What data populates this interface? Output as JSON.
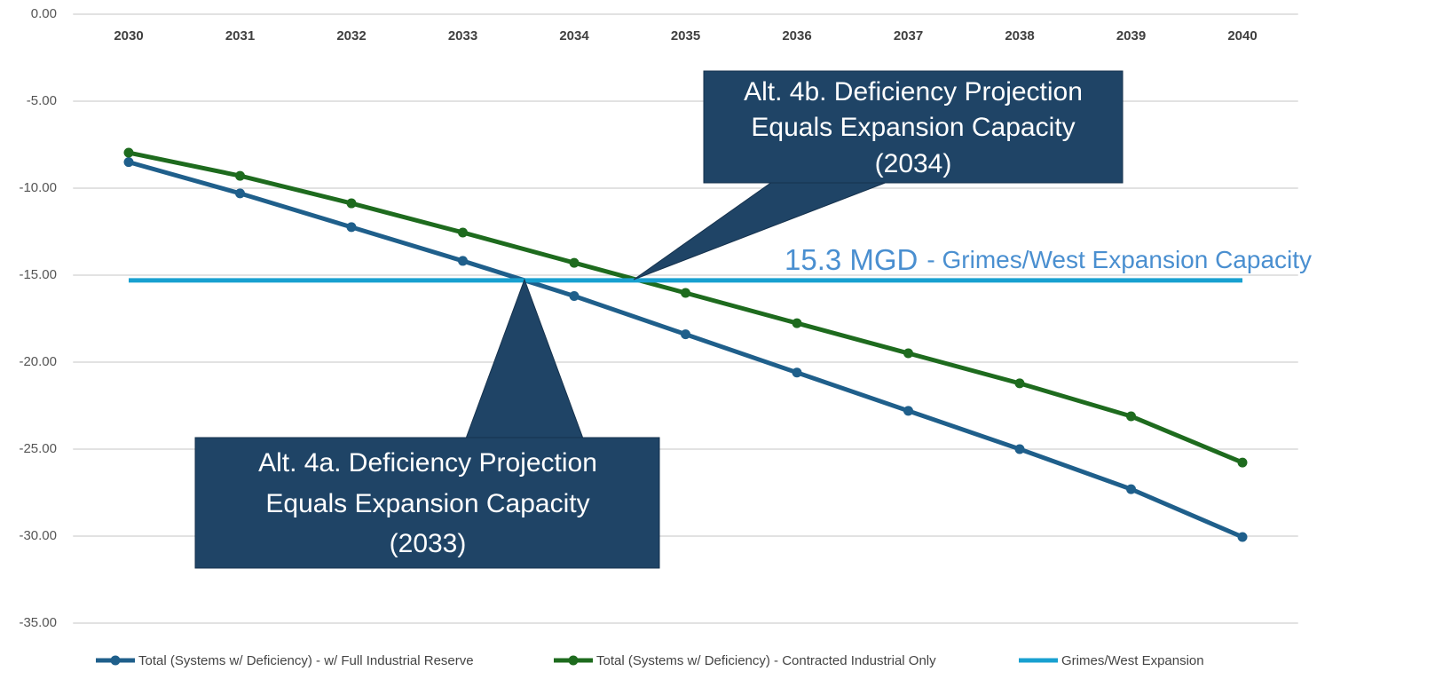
{
  "chart_data": {
    "type": "line",
    "categories": [
      "2030",
      "2031",
      "2032",
      "2033",
      "2034",
      "2035",
      "2036",
      "2037",
      "2038",
      "2039",
      "2040"
    ],
    "series": [
      {
        "name": "Total (Systems w/ Deficiency) - w/ Full Industrial Reserve",
        "color": "#1f5f8b",
        "values": [
          -8.5,
          -10.3,
          -12.24,
          -14.18,
          -16.2,
          -18.4,
          -20.6,
          -22.8,
          -25.0,
          -27.3,
          -30.05
        ]
      },
      {
        "name": "Total (Systems w/ Deficiency) - Contracted Industrial Only",
        "color": "#1e6b1e",
        "values": [
          -7.96,
          -9.29,
          -10.87,
          -12.55,
          -14.29,
          -16.02,
          -17.76,
          -19.49,
          -21.22,
          -23.11,
          -25.77
        ]
      },
      {
        "name": "Grimes/West Expansion",
        "color": "#18a0d0",
        "values": [
          -15.3,
          -15.3,
          -15.3,
          -15.3,
          -15.3,
          -15.3,
          -15.3,
          -15.3,
          -15.3,
          -15.3,
          -15.3
        ]
      }
    ],
    "ylim": [
      -35,
      0
    ],
    "yticks": [
      {
        "value": 0,
        "label": "0.00"
      },
      {
        "value": -5,
        "label": "-5.00"
      },
      {
        "value": -10,
        "label": "-10.00"
      },
      {
        "value": -15,
        "label": "-15.00"
      },
      {
        "value": -20,
        "label": "-20.00"
      },
      {
        "value": -25,
        "label": "-25.00"
      },
      {
        "value": -30,
        "label": "-30.00"
      },
      {
        "value": -35,
        "label": "-35.00"
      }
    ],
    "grid": true,
    "legend": "bottom",
    "annotations": {
      "capacity": [
        "15.3 MGD",
        "- Grimes/West Expansion Capacity"
      ],
      "alt_4b": [
        "Alt. 4b. Deficiency Projection",
        "Equals Expansion Capacity",
        "(2034)"
      ],
      "alt_4a": [
        "Alt. 4a. Deficiency Projection",
        "Equals Expansion Capacity",
        "(2033)"
      ]
    }
  }
}
